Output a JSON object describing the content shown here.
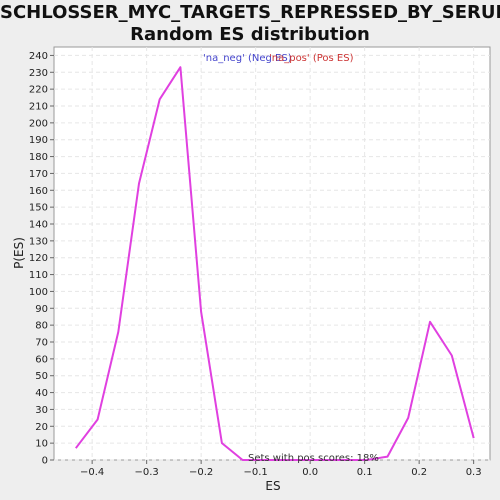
{
  "title_line1": "SCHLOSSER_MYC_TARGETS_REPRESSED_BY_SERUM:",
  "title_line2": "Random ES distribution",
  "chart_data": {
    "type": "line",
    "xlabel": "ES",
    "ylabel": "P(ES)",
    "xlim": [
      -0.47,
      0.33
    ],
    "ylim": [
      0,
      245
    ],
    "x_ticks": [
      -0.4,
      -0.3,
      -0.2,
      -0.1,
      0.0,
      0.1,
      0.2,
      0.3
    ],
    "x_tick_labels": [
      "−0.4",
      "−0.3",
      "−0.2",
      "−0.1",
      "0.0",
      "0.1",
      "0.2",
      "0.3"
    ],
    "y_ticks": [
      0,
      10,
      20,
      30,
      40,
      50,
      60,
      70,
      80,
      90,
      100,
      110,
      120,
      130,
      140,
      150,
      160,
      170,
      180,
      190,
      200,
      210,
      220,
      230,
      240
    ],
    "grid": true,
    "legend_placement": "top-center",
    "legend": [
      {
        "label": "'na_neg' (Neg ES)",
        "color": "#4444cc"
      },
      {
        "label": "'na_pos' (Pos ES)",
        "color": "#cc3333"
      }
    ],
    "annotation": "Sets with pos scores: 18%",
    "series": [
      {
        "color": "#e040e0",
        "x": [
          -0.43,
          -0.39,
          -0.352,
          -0.314,
          -0.276,
          -0.238,
          -0.2,
          -0.162,
          -0.124,
          -0.086,
          -0.048,
          -0.01,
          0.028,
          0.066,
          0.104,
          0.142,
          0.18,
          0.22,
          0.26,
          0.3
        ],
        "y": [
          7,
          24,
          76,
          164,
          214,
          233,
          88,
          10,
          0,
          0,
          0,
          0,
          0,
          0,
          0,
          2,
          25,
          82,
          62,
          13
        ]
      }
    ]
  }
}
